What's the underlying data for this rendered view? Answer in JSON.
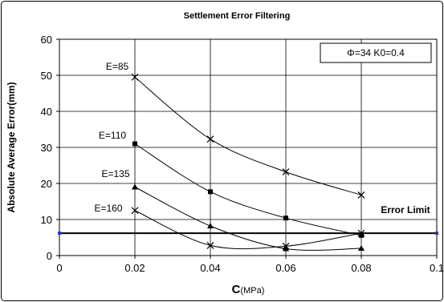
{
  "chart_data": {
    "type": "line",
    "title": "Settlement Error Filtering",
    "xlabel": "C",
    "xlabel_unit": "(MPa)",
    "ylabel": "Absolute Average Error(mm)",
    "xlim": [
      0,
      0.1
    ],
    "ylim": [
      0,
      60
    ],
    "x_ticks": [
      0,
      0.02,
      0.04,
      0.06,
      0.08,
      0.1
    ],
    "x_tick_labels": [
      "0",
      "0.02",
      "0.04",
      "0.06",
      "0.08",
      "0.1"
    ],
    "y_ticks": [
      0,
      10,
      20,
      30,
      40,
      50,
      60
    ],
    "y_tick_labels": [
      "0",
      "10",
      "20",
      "30",
      "40",
      "50",
      "60"
    ],
    "grid": true,
    "parameter_box": "Φ=34  K0=0.4",
    "x": [
      0.02,
      0.04,
      0.06,
      0.08
    ],
    "series": [
      {
        "label": "E=85",
        "values": [
          49.5,
          32.3,
          23.2,
          16.8
        ],
        "marker": "x",
        "color": "#000000"
      },
      {
        "label": "E=110",
        "values": [
          31.0,
          17.7,
          10.4,
          5.6
        ],
        "marker": "square",
        "color": "#000000"
      },
      {
        "label": "E=135",
        "values": [
          19.0,
          8.2,
          1.9,
          2.0
        ],
        "marker": "triangle",
        "color": "#000000"
      },
      {
        "label": "E=160",
        "values": [
          12.5,
          2.8,
          2.6,
          6.2
        ],
        "marker": "x",
        "color": "#000000"
      }
    ],
    "error_limit": {
      "label": "Error Limit",
      "value": 6.2,
      "color": "#000000",
      "endpoint_color": "#3333cc"
    }
  }
}
